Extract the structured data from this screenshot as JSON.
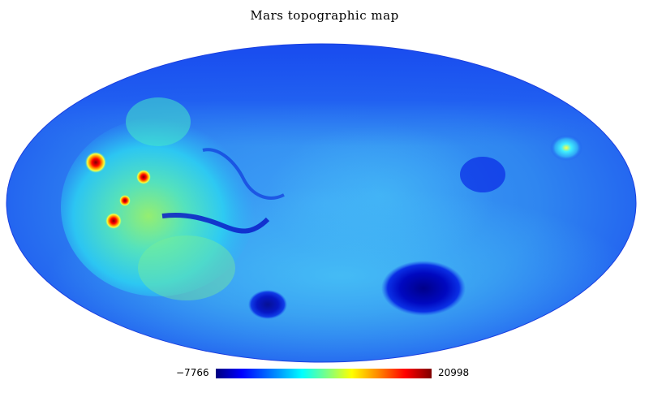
{
  "title": "Mars topographic map",
  "projection": "mollweide",
  "colormap": {
    "name": "jet",
    "min_label": "−7766",
    "max_label": "20998",
    "stops": [
      "#00007f",
      "#0000ff",
      "#00a0ff",
      "#00ffff",
      "#80ff80",
      "#ffff00",
      "#ff8000",
      "#ff0000",
      "#7f0000"
    ]
  },
  "colors": {
    "background": "#ffffff",
    "dominant_map_blue": "#1a4cf2"
  }
}
